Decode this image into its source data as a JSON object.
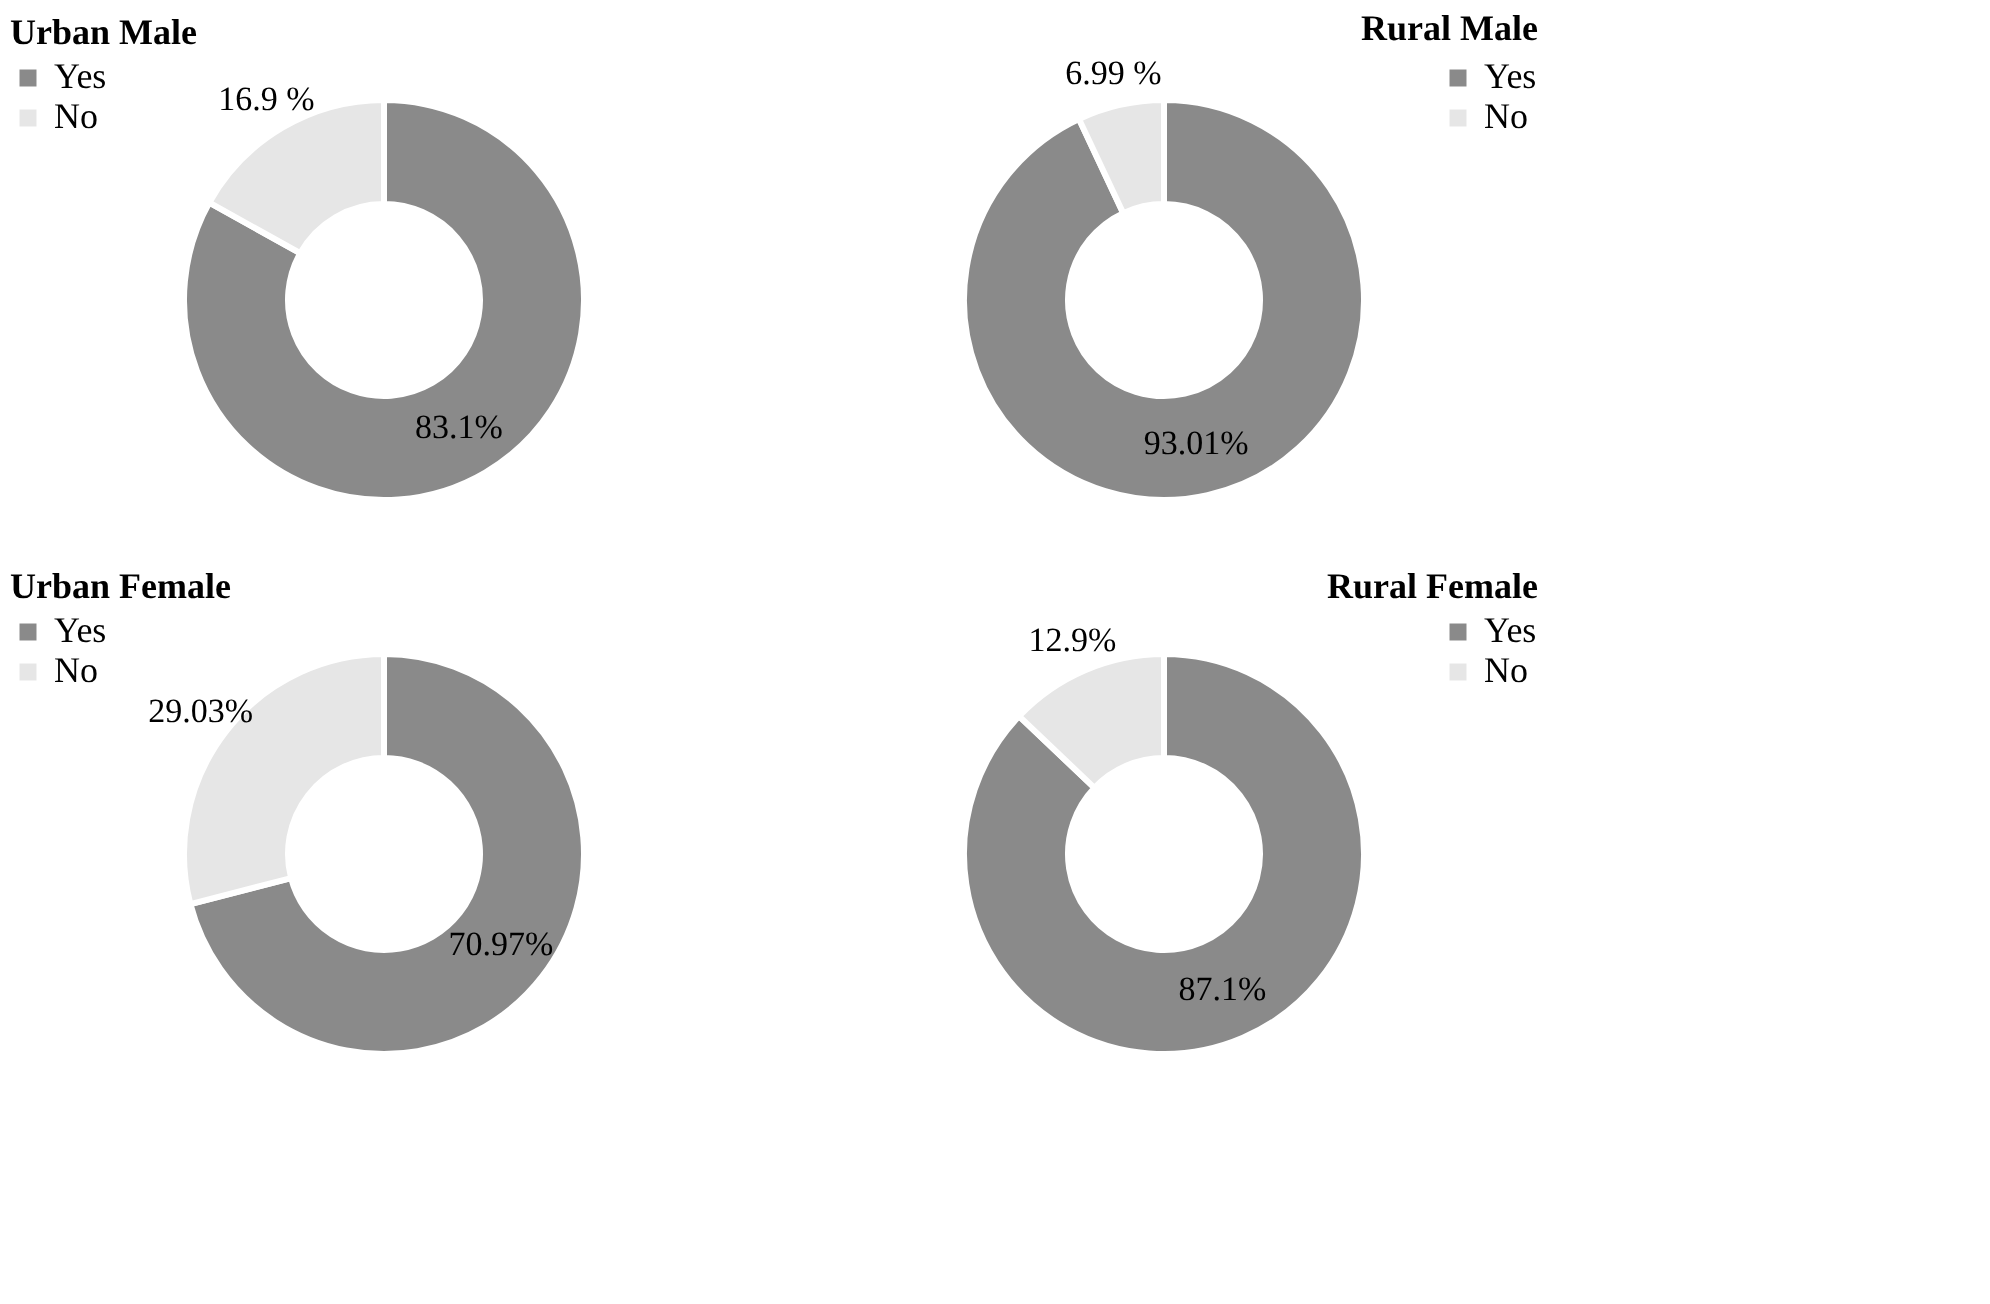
{
  "chart_data": [
    {
      "type": "donut",
      "title": "Urban Male",
      "categories": [
        "Yes",
        "No"
      ],
      "values": [
        83.1,
        16.9
      ],
      "colors": [
        "#8a8a8a",
        "#e6e6e6"
      ],
      "value_labels": [
        "83.1%",
        "16.9 %"
      ],
      "legend": "left"
    },
    {
      "type": "donut",
      "title": "Rural Male",
      "categories": [
        "Yes",
        "No"
      ],
      "values": [
        93.01,
        6.99
      ],
      "colors": [
        "#8a8a8a",
        "#e6e6e6"
      ],
      "value_labels": [
        "93.01%",
        "6.99 %"
      ],
      "legend": "right"
    },
    {
      "type": "donut",
      "title": "Urban Female",
      "categories": [
        "Yes",
        "No"
      ],
      "values": [
        70.97,
        29.03
      ],
      "colors": [
        "#8a8a8a",
        "#e6e6e6"
      ],
      "value_labels": [
        "70.97%",
        "29.03%"
      ],
      "legend": "left"
    },
    {
      "type": "donut",
      "title": "Rural Female",
      "categories": [
        "Yes",
        "No"
      ],
      "values": [
        87.1,
        12.9
      ],
      "colors": [
        "#8a8a8a",
        "#e6e6e6"
      ],
      "value_labels": [
        "87.1%",
        "12.9%"
      ],
      "legend": "right"
    }
  ]
}
